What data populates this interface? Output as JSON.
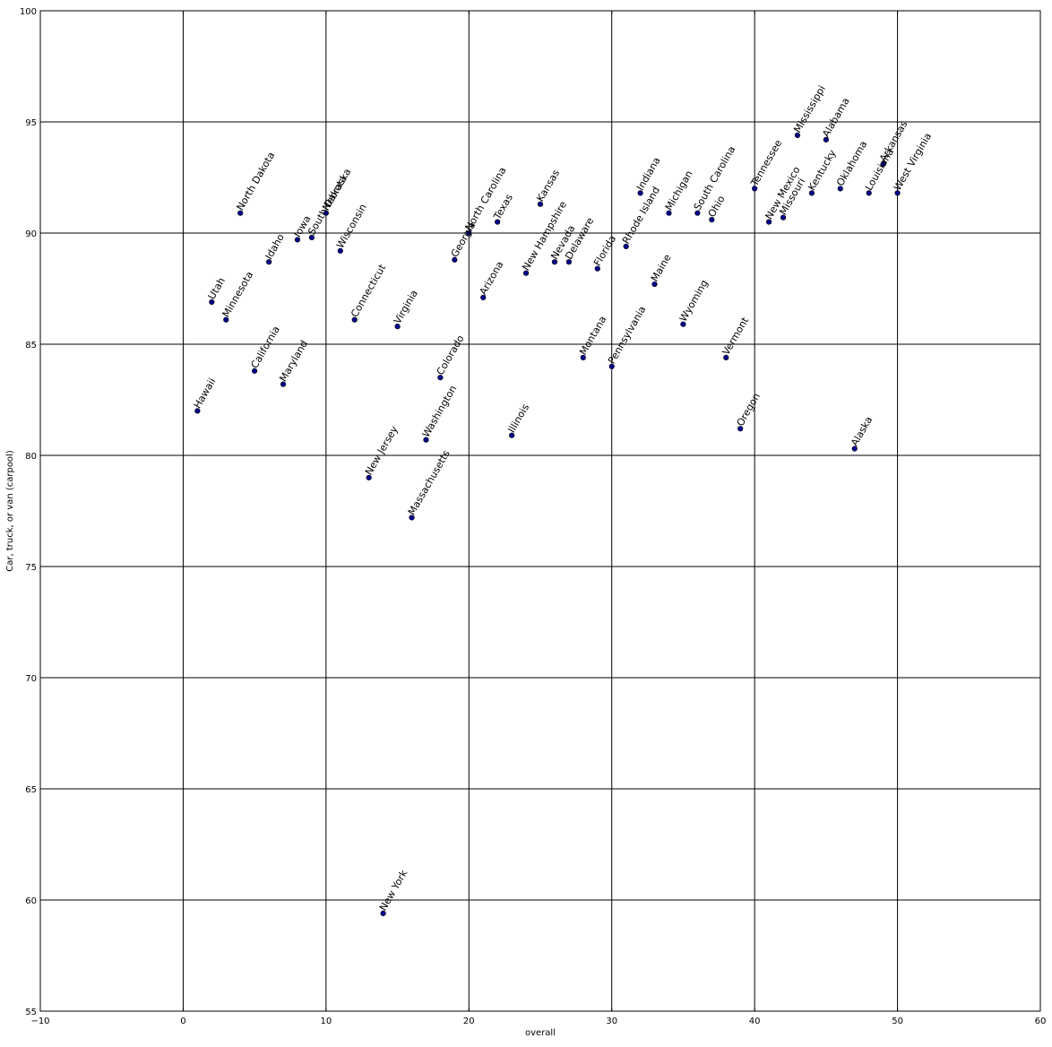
{
  "chart_data": {
    "type": "scatter",
    "title": "",
    "xlabel": "overall",
    "ylabel": "Car, truck, or van (carpool)",
    "xlim": [
      -10,
      60
    ],
    "ylim": [
      55,
      100
    ],
    "xticks": [
      -10,
      0,
      10,
      20,
      30,
      40,
      50,
      60
    ],
    "yticks": [
      55,
      60,
      65,
      70,
      75,
      80,
      85,
      90,
      95,
      100
    ],
    "grid": true,
    "marker_color": "#00008b",
    "points": [
      {
        "label": "Hawaii",
        "x": 1,
        "y": 82.0
      },
      {
        "label": "Utah",
        "x": 2,
        "y": 86.9
      },
      {
        "label": "Minnesota",
        "x": 3,
        "y": 86.1
      },
      {
        "label": "North Dakota",
        "x": 4,
        "y": 90.9
      },
      {
        "label": "California",
        "x": 5,
        "y": 83.8
      },
      {
        "label": "Idaho",
        "x": 6,
        "y": 88.7
      },
      {
        "label": "Maryland",
        "x": 7,
        "y": 83.2
      },
      {
        "label": "Iowa",
        "x": 8,
        "y": 89.7
      },
      {
        "label": "South Dakota",
        "x": 9,
        "y": 89.8
      },
      {
        "label": "Nebraska",
        "x": 10,
        "y": 90.9
      },
      {
        "label": "Wisconsin",
        "x": 11,
        "y": 89.2
      },
      {
        "label": "Connecticut",
        "x": 12,
        "y": 86.1
      },
      {
        "label": "New Jersey",
        "x": 13,
        "y": 79.0
      },
      {
        "label": "New York",
        "x": 14,
        "y": 59.4
      },
      {
        "label": "Virginia",
        "x": 15,
        "y": 85.8
      },
      {
        "label": "Massachusetts",
        "x": 16,
        "y": 77.2
      },
      {
        "label": "Washington",
        "x": 17,
        "y": 80.7
      },
      {
        "label": "Colorado",
        "x": 18,
        "y": 83.5
      },
      {
        "label": "Georgia",
        "x": 19,
        "y": 88.8
      },
      {
        "label": "North Carolina",
        "x": 20,
        "y": 90.0
      },
      {
        "label": "Arizona",
        "x": 21,
        "y": 87.1
      },
      {
        "label": "Texas",
        "x": 22,
        "y": 90.5
      },
      {
        "label": "Illinois",
        "x": 23,
        "y": 80.9
      },
      {
        "label": "New Hampshire",
        "x": 24,
        "y": 88.2
      },
      {
        "label": "Kansas",
        "x": 25,
        "y": 91.3
      },
      {
        "label": "Nevada",
        "x": 26,
        "y": 88.7
      },
      {
        "label": "Delaware",
        "x": 27,
        "y": 88.7
      },
      {
        "label": "Montana",
        "x": 28,
        "y": 84.4
      },
      {
        "label": "Florida",
        "x": 29,
        "y": 88.4
      },
      {
        "label": "Pennsylvania",
        "x": 30,
        "y": 84.0
      },
      {
        "label": "Rhode Island",
        "x": 31,
        "y": 89.4
      },
      {
        "label": "Indiana",
        "x": 32,
        "y": 91.8
      },
      {
        "label": "Maine",
        "x": 33,
        "y": 87.7
      },
      {
        "label": "Michigan",
        "x": 34,
        "y": 90.9
      },
      {
        "label": "Wyoming",
        "x": 35,
        "y": 85.9
      },
      {
        "label": "South Carolina",
        "x": 36,
        "y": 90.9
      },
      {
        "label": "Ohio",
        "x": 37,
        "y": 90.6
      },
      {
        "label": "Vermont",
        "x": 38,
        "y": 84.4
      },
      {
        "label": "Oregon",
        "x": 39,
        "y": 81.2
      },
      {
        "label": "Tennessee",
        "x": 40,
        "y": 92.0
      },
      {
        "label": "New Mexico",
        "x": 41,
        "y": 90.5
      },
      {
        "label": "Missouri",
        "x": 42,
        "y": 90.7
      },
      {
        "label": "Mississippi",
        "x": 43,
        "y": 94.4
      },
      {
        "label": "Kentucky",
        "x": 44,
        "y": 91.8
      },
      {
        "label": "Alabama",
        "x": 45,
        "y": 94.2
      },
      {
        "label": "Oklahoma",
        "x": 46,
        "y": 92.0
      },
      {
        "label": "Alaska",
        "x": 47,
        "y": 80.3
      },
      {
        "label": "Louisiana",
        "x": 48,
        "y": 91.8
      },
      {
        "label": "Arkansas",
        "x": 49,
        "y": 93.1
      },
      {
        "label": "West Virginia",
        "x": 50,
        "y": 91.8
      }
    ]
  }
}
